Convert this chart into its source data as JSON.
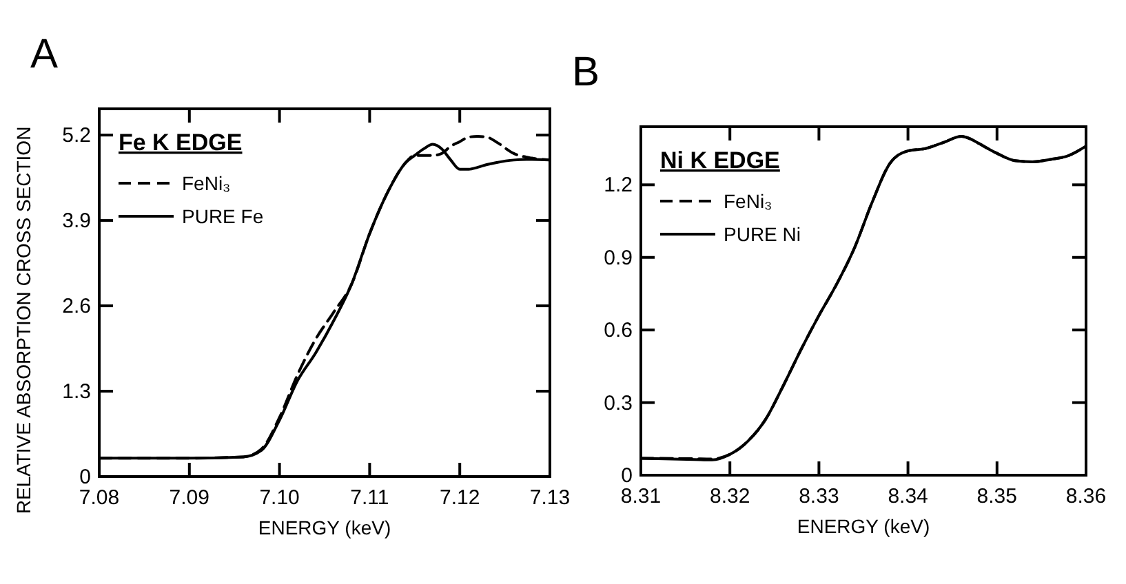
{
  "chart_data": [
    {
      "type": "line",
      "title": "A",
      "xlabel": "ENERGY (keV)",
      "ylabel": "RELATIVE ABSORPTION CROSS SECTION",
      "legend_title": "Fe K EDGE",
      "legend": "top left",
      "grid": false,
      "xlim": [
        7.08,
        7.13
      ],
      "xticks": [
        {
          "value": 7.08,
          "label": "7.08"
        },
        {
          "value": 7.09,
          "label": "7.09"
        },
        {
          "value": 7.1,
          "label": "7.10"
        },
        {
          "value": 7.11,
          "label": "7.11"
        },
        {
          "value": 7.12,
          "label": "7.12"
        },
        {
          "value": 7.13,
          "label": "7.13"
        }
      ],
      "ylim": [
        0,
        5.6
      ],
      "yticks": [
        0,
        1.3,
        2.6,
        3.9,
        5.2
      ],
      "series": [
        {
          "name": "FeNi₃",
          "color": "#000000",
          "line_style": "dashed",
          "x": [
            7.08,
            7.09,
            7.096,
            7.098,
            7.1,
            7.102,
            7.104,
            7.106,
            7.108,
            7.11,
            7.112,
            7.114,
            7.115,
            7.116,
            7.117,
            7.118,
            7.119,
            7.12,
            7.121,
            7.122,
            7.123,
            7.124,
            7.126,
            7.128,
            7.13
          ],
          "values": [
            0.28,
            0.28,
            0.3,
            0.42,
            0.9,
            1.55,
            2.09,
            2.5,
            2.93,
            3.7,
            4.33,
            4.78,
            4.89,
            4.89,
            4.89,
            4.92,
            5.03,
            5.1,
            5.17,
            5.18,
            5.17,
            5.1,
            4.92,
            4.85,
            4.82
          ]
        },
        {
          "name": "PURE Fe",
          "color": "#000000",
          "line_style": "solid",
          "x": [
            7.08,
            7.09,
            7.096,
            7.098,
            7.1,
            7.102,
            7.104,
            7.106,
            7.108,
            7.11,
            7.112,
            7.114,
            7.115,
            7.116,
            7.117,
            7.118,
            7.119,
            7.12,
            7.121,
            7.122,
            7.123,
            7.124,
            7.126,
            7.128,
            7.13
          ],
          "values": [
            0.28,
            0.28,
            0.3,
            0.4,
            0.86,
            1.46,
            1.88,
            2.37,
            2.93,
            3.7,
            4.33,
            4.78,
            4.89,
            4.99,
            5.06,
            4.99,
            4.82,
            4.68,
            4.68,
            4.71,
            4.75,
            4.78,
            4.82,
            4.83,
            4.82
          ]
        }
      ]
    },
    {
      "type": "line",
      "title": "B",
      "xlabel": "ENERGY (keV)",
      "legend_title": "Ni K EDGE",
      "legend": "top left",
      "grid": false,
      "xlim": [
        8.31,
        8.36
      ],
      "xticks": [
        8.31,
        8.32,
        8.33,
        8.34,
        8.35,
        8.36
      ],
      "ylim": [
        0,
        1.44
      ],
      "yticks": [
        0,
        0.3,
        0.6,
        0.9,
        1.2
      ],
      "series": [
        {
          "name": "FeNi₃",
          "color": "#000000",
          "line_style": "dashed",
          "x": [
            8.31,
            8.316,
            8.318,
            8.32,
            8.322,
            8.324,
            8.326,
            8.328,
            8.33,
            8.332,
            8.334,
            8.336,
            8.338,
            8.34,
            8.342,
            8.344,
            8.346,
            8.347,
            8.348,
            8.35,
            8.352,
            8.354,
            8.356,
            8.358,
            8.36
          ],
          "values": [
            0.07,
            0.068,
            0.067,
            0.086,
            0.14,
            0.23,
            0.37,
            0.52,
            0.66,
            0.79,
            0.94,
            1.13,
            1.29,
            1.34,
            1.35,
            1.375,
            1.4,
            1.39,
            1.37,
            1.33,
            1.3,
            1.295,
            1.305,
            1.32,
            1.36
          ]
        },
        {
          "name": "PURE Ni",
          "color": "#000000",
          "line_style": "solid",
          "x": [
            8.31,
            8.316,
            8.318,
            8.32,
            8.322,
            8.324,
            8.326,
            8.328,
            8.33,
            8.332,
            8.334,
            8.336,
            8.338,
            8.34,
            8.342,
            8.344,
            8.346,
            8.347,
            8.348,
            8.35,
            8.352,
            8.354,
            8.356,
            8.358,
            8.36
          ],
          "values": [
            0.07,
            0.065,
            0.063,
            0.086,
            0.14,
            0.23,
            0.37,
            0.52,
            0.66,
            0.79,
            0.94,
            1.13,
            1.29,
            1.34,
            1.35,
            1.375,
            1.4,
            1.39,
            1.37,
            1.33,
            1.3,
            1.295,
            1.305,
            1.32,
            1.36
          ]
        }
      ]
    }
  ]
}
